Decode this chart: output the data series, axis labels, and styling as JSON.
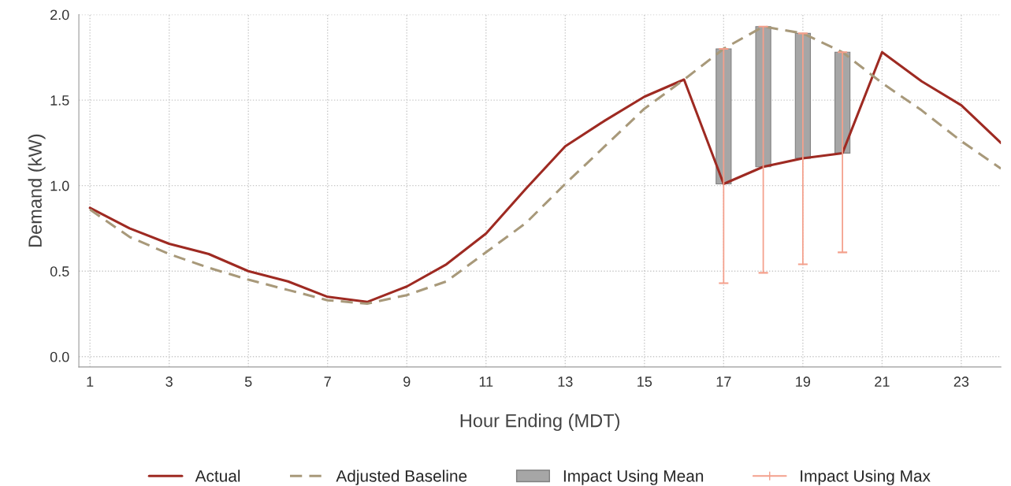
{
  "chart_data": {
    "type": "line",
    "xlabel": "Hour Ending (MDT)",
    "ylabel": "Demand (kW)",
    "x": [
      1,
      2,
      3,
      4,
      5,
      6,
      7,
      8,
      9,
      10,
      11,
      12,
      13,
      14,
      15,
      16,
      17,
      18,
      19,
      20,
      21,
      22,
      23,
      24
    ],
    "series": [
      {
        "name": "Actual",
        "line_style": "solid",
        "color": "#9e2a22",
        "values": [
          0.87,
          0.75,
          0.66,
          0.6,
          0.5,
          0.44,
          0.35,
          0.32,
          0.41,
          0.54,
          0.72,
          0.98,
          1.23,
          1.38,
          1.52,
          1.62,
          1.01,
          1.11,
          1.16,
          1.19,
          1.78,
          1.61,
          1.47,
          1.25
        ]
      },
      {
        "name": "Adjusted Baseline",
        "type": "line",
        "line_style": "dashed",
        "color": "#a8997a",
        "values": [
          0.86,
          0.7,
          0.6,
          0.52,
          0.45,
          0.39,
          0.33,
          0.31,
          0.36,
          0.44,
          0.61,
          0.78,
          1.01,
          1.23,
          1.45,
          1.62,
          1.8,
          1.93,
          1.89,
          1.78,
          1.6,
          1.44,
          1.26,
          1.1
        ]
      },
      {
        "name": "Impact Using Mean",
        "type": "bar",
        "color": "#a6a6a6",
        "x": [
          17,
          18,
          19,
          20
        ],
        "base": [
          1.01,
          1.11,
          1.16,
          1.19
        ],
        "values": [
          0.79,
          0.82,
          0.73,
          0.59
        ]
      },
      {
        "name": "Impact Using Max",
        "type": "bar",
        "color": "#f4a08c",
        "x": [
          17,
          18,
          19,
          20
        ],
        "base": [
          0.43,
          0.49,
          0.54,
          0.61
        ],
        "values": [
          1.37,
          1.44,
          1.35,
          1.17
        ]
      }
    ],
    "xlim": [
      0.72,
      24
    ],
    "xticks": [
      1,
      3,
      5,
      7,
      9,
      11,
      13,
      15,
      17,
      19,
      21,
      23
    ],
    "ylim": [
      -0.06,
      2.0
    ],
    "yticks": [
      {
        "value": 0,
        "label": "0.0"
      },
      {
        "value": 0.5,
        "label": "0.5"
      },
      {
        "value": 1,
        "label": "1.0"
      },
      {
        "value": 1.5,
        "label": "1.5"
      },
      {
        "value": 2,
        "label": "2.0"
      }
    ],
    "grid": true,
    "legend": "bottom"
  }
}
